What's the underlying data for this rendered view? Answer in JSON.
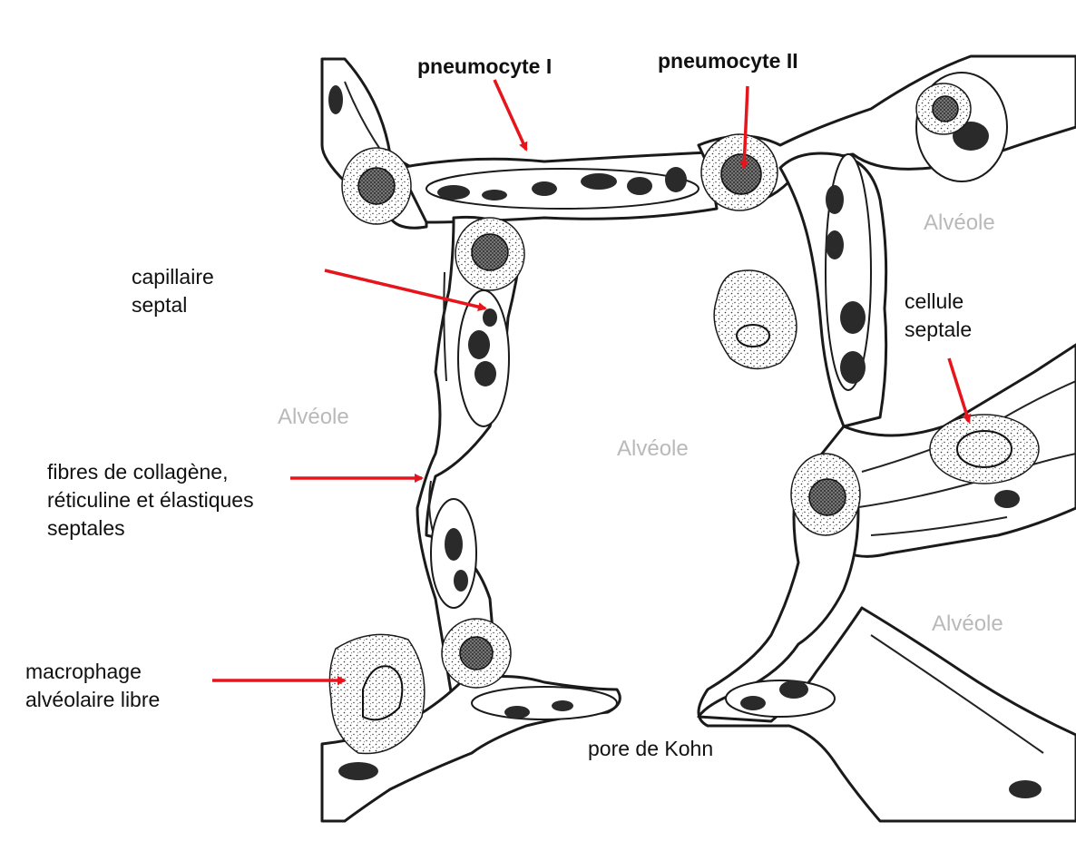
{
  "labels": {
    "pneumocyte_1": "pneumocyte I",
    "pneumocyte_2": "pneumocyte II",
    "capillaire": [
      "capillaire",
      "septal"
    ],
    "cellule_septale": [
      "cellule",
      "septale"
    ],
    "fibres": [
      "fibres de collagène,",
      "réticuline et élastiques",
      "septales"
    ],
    "macrophage": [
      "macrophage",
      "alvéolaire libre"
    ],
    "pore": "pore de Kohn"
  },
  "alveoles": [
    "Alvéole",
    "Alvéole",
    "Alvéole",
    "Alvéole"
  ],
  "colors": {
    "arrow": "#e8141b",
    "ink": "#111111",
    "alveole_text": "#b9b9b9",
    "nucleus": "#2a2a2a"
  }
}
